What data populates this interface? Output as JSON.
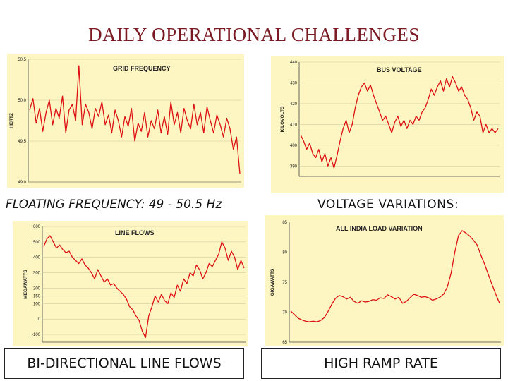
{
  "slide": {
    "title": "DAILY OPERATIONAL CHALLENGES"
  },
  "captions": {
    "frequency": "FLOATING FREQUENCY: 49 - 50.5 Hz",
    "voltage": "VOLTAGE VARIATIONS:",
    "line_flows": "BI-DIRECTIONAL LINE FLOWS",
    "ramp": "HIGH RAMP RATE"
  },
  "colors": {
    "title": "#7a1a22",
    "panel_bg": "#fdf6c3",
    "series": "#dd1111"
  },
  "chart_data": [
    {
      "type": "line",
      "title": "GRID FREQUENCY",
      "ylabel": "HERTZ",
      "ylim": [
        49.0,
        50.5
      ],
      "yticks": [
        "50.5",
        "50.0",
        "49.5",
        "49.0"
      ],
      "grid": true,
      "series": [
        {
          "values": [
            49.88,
            50.02,
            49.72,
            49.9,
            49.62,
            49.85,
            50.0,
            49.7,
            49.9,
            49.78,
            50.05,
            49.6,
            49.88,
            49.95,
            49.75,
            50.42,
            49.7,
            49.95,
            49.85,
            49.65,
            49.9,
            49.8,
            49.98,
            49.7,
            49.82,
            49.6,
            49.88,
            49.75,
            49.55,
            49.8,
            49.68,
            49.9,
            49.5,
            49.72,
            49.62,
            49.85,
            49.55,
            49.75,
            49.65,
            49.88,
            49.6,
            49.8,
            49.58,
            49.98,
            49.7,
            49.85,
            49.6,
            49.9,
            49.75,
            49.65,
            49.95,
            49.7,
            49.85,
            49.6,
            49.92,
            49.75,
            49.6,
            49.82,
            49.7,
            49.55,
            49.78,
            49.65,
            49.4,
            49.55,
            49.1
          ]
        }
      ]
    },
    {
      "type": "line",
      "title": "BUS VOLTAGE",
      "ylabel": "KILOVOLTS",
      "ylim": [
        385,
        440
      ],
      "yticks": [
        "440",
        "430",
        "420",
        "410",
        "400",
        "390"
      ],
      "grid": true,
      "series": [
        {
          "values": [
            405,
            402,
            398,
            401,
            396,
            394,
            398,
            392,
            396,
            390,
            394,
            389,
            395,
            402,
            408,
            412,
            406,
            410,
            418,
            424,
            428,
            430,
            426,
            429,
            424,
            420,
            416,
            412,
            414,
            410,
            406,
            411,
            414,
            409,
            412,
            408,
            412,
            410,
            414,
            412,
            416,
            418,
            422,
            427,
            424,
            428,
            431,
            426,
            432,
            428,
            433,
            430,
            426,
            428,
            424,
            422,
            418,
            412,
            416,
            414,
            406,
            410,
            406,
            408,
            406,
            408
          ]
        }
      ]
    },
    {
      "type": "line",
      "title": "LINE FLOWS",
      "ylabel": "MEGAWATTS",
      "ylim": [
        -150,
        600
      ],
      "yticks": [
        "600",
        "500",
        "400",
        "300",
        "200",
        "150",
        "100",
        "0",
        "-100"
      ],
      "grid": true,
      "series": [
        {
          "values": [
            470,
            520,
            540,
            500,
            460,
            480,
            450,
            430,
            440,
            400,
            380,
            360,
            390,
            350,
            330,
            300,
            260,
            320,
            280,
            240,
            260,
            220,
            230,
            200,
            180,
            160,
            130,
            80,
            60,
            20,
            -10,
            -80,
            -120,
            20,
            80,
            150,
            110,
            160,
            120,
            100,
            170,
            140,
            220,
            180,
            260,
            230,
            300,
            280,
            350,
            320,
            260,
            300,
            360,
            340,
            380,
            420,
            500,
            460,
            380,
            440,
            400,
            320,
            380,
            330
          ]
        }
      ]
    },
    {
      "type": "line",
      "title": "ALL INDIA LOAD VARIATION",
      "ylabel": "GIGAWATTS",
      "ylim": [
        65,
        85
      ],
      "yticks": [
        "85",
        "80",
        "75",
        "70",
        "65"
      ],
      "grid": false,
      "series": [
        {
          "values": [
            70.2,
            69.6,
            69.0,
            68.7,
            68.5,
            68.4,
            68.5,
            68.4,
            68.6,
            69.1,
            70.1,
            71.3,
            72.3,
            72.8,
            72.6,
            72.2,
            72.5,
            71.8,
            71.5,
            71.9,
            71.7,
            71.8,
            72.1,
            72.0,
            72.4,
            72.3,
            72.9,
            72.6,
            72.2,
            72.5,
            71.5,
            71.8,
            72.4,
            73.0,
            72.8,
            72.5,
            72.6,
            72.4,
            72.0,
            72.2,
            72.5,
            73.0,
            74.2,
            76.5,
            80.0,
            82.8,
            83.6,
            83.2,
            82.7,
            82.0,
            81.2,
            79.5,
            78.0,
            76.3,
            74.6,
            73.0,
            71.5
          ]
        }
      ]
    }
  ]
}
